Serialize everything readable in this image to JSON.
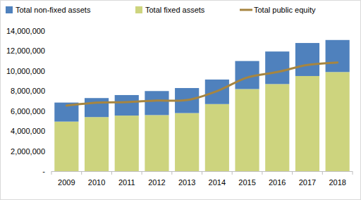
{
  "chart_data": {
    "type": "bar",
    "stacked": true,
    "grid": false,
    "legend": "top",
    "categories": [
      "2009",
      "2010",
      "2011",
      "2012",
      "2013",
      "2014",
      "2015",
      "2016",
      "2017",
      "2018"
    ],
    "series": [
      {
        "name": "Total non-fixed assets",
        "type": "bar",
        "color": "#4f81bd",
        "values": [
          1900000,
          1900000,
          2050000,
          2400000,
          2500000,
          2450000,
          2800000,
          3250000,
          3300000,
          3200000
        ]
      },
      {
        "name": "Total fixed assets",
        "type": "bar",
        "color": "#cdd47e",
        "values": [
          4950000,
          5400000,
          5550000,
          5600000,
          5800000,
          6700000,
          8200000,
          8700000,
          9500000,
          9900000
        ]
      },
      {
        "name": "Total public equity",
        "type": "line",
        "color": "#a68540",
        "line_style": "solid",
        "values": [
          6550000,
          6850000,
          6900000,
          7050000,
          7100000,
          8000000,
          9350000,
          9900000,
          10600000,
          10850000
        ]
      }
    ],
    "ylim": [
      0,
      14000000
    ],
    "yticks": [
      {
        "value": 0,
        "label": "-"
      },
      {
        "value": 2000000,
        "label": "2,000,000"
      },
      {
        "value": 4000000,
        "label": "4,000,000"
      },
      {
        "value": 6000000,
        "label": "6,000,000"
      },
      {
        "value": 8000000,
        "label": "8,000,000"
      },
      {
        "value": 10000000,
        "label": "10,000,000"
      },
      {
        "value": 12000000,
        "label": "12,000,000"
      },
      {
        "value": 14000000,
        "label": "14,000,000"
      }
    ]
  }
}
